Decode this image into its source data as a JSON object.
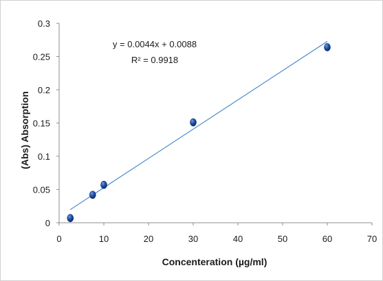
{
  "chart_data": {
    "type": "scatter",
    "xlabel": "Concenteration (µg/ml)",
    "ylabel": "(Abs) Absorption",
    "xlim": [
      0,
      70
    ],
    "ylim": [
      0,
      0.3
    ],
    "x_ticks": [
      0,
      10,
      20,
      30,
      40,
      50,
      60,
      70
    ],
    "y_ticks": [
      0,
      0.05,
      0.1,
      0.15,
      0.2,
      0.25,
      0.3
    ],
    "x_tick_labels": [
      "0",
      "10",
      "20",
      "30",
      "40",
      "50",
      "60",
      "70"
    ],
    "y_tick_labels": [
      "0",
      "0.05",
      "0.1",
      "0.15",
      "0.2",
      "0.25",
      "0.3"
    ],
    "points": [
      {
        "x": 2.5,
        "y": 0.007
      },
      {
        "x": 7.5,
        "y": 0.042
      },
      {
        "x": 10,
        "y": 0.057
      },
      {
        "x": 30,
        "y": 0.151
      },
      {
        "x": 60,
        "y": 0.264
      }
    ],
    "trendline": {
      "slope": 0.0044,
      "intercept": 0.0088,
      "x_start": 2.5,
      "x_end": 60
    },
    "equation_label": "y = 0.0044x + 0.0088",
    "r2_label": "R² = 0.9918",
    "grid": false,
    "legend": "none",
    "colors": {
      "marker": "#1f4ea8",
      "trendline": "#3d7fc9",
      "axis": "#8c8c8c"
    }
  }
}
